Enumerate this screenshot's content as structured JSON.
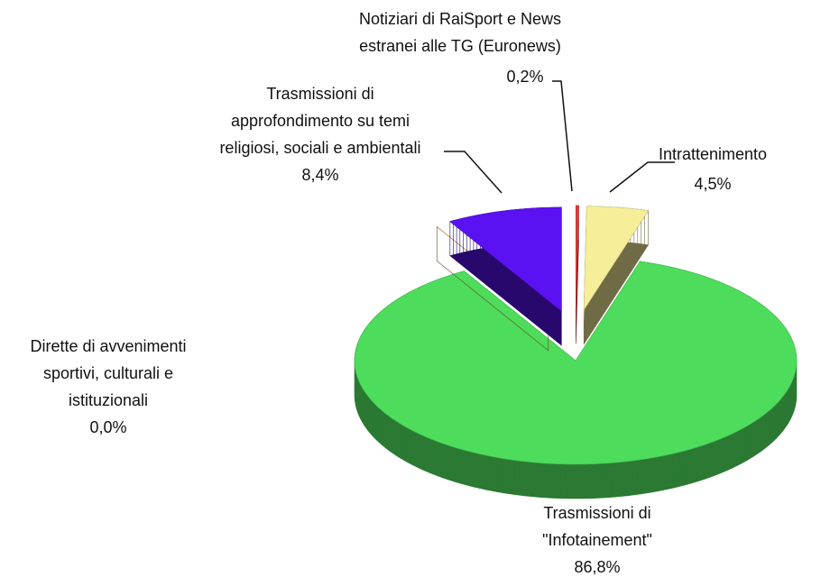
{
  "chart_data": {
    "type": "pie",
    "categories": [
      "Notiziari di RaiSport e News\nestranei alle TG (Euronews)",
      "Intrattenimento",
      "Trasmissioni di\n\"Infotainement\"",
      "Dirette di avvenimenti\nsportivi, culturali e\nistituzionali",
      "Trasmissioni di\napprofondimento  su temi\nreligiosi, sociali e ambientali"
    ],
    "values": [
      0.2,
      4.5,
      86.8,
      0.0,
      8.4
    ],
    "value_labels": [
      "0,2%",
      "4,5%",
      "86,8%",
      "0,0%",
      "8,4%"
    ],
    "colors": [
      "#e8383a",
      "#f6ee98",
      "#4edc5c",
      "#f0a040",
      "#5a12f2"
    ]
  }
}
